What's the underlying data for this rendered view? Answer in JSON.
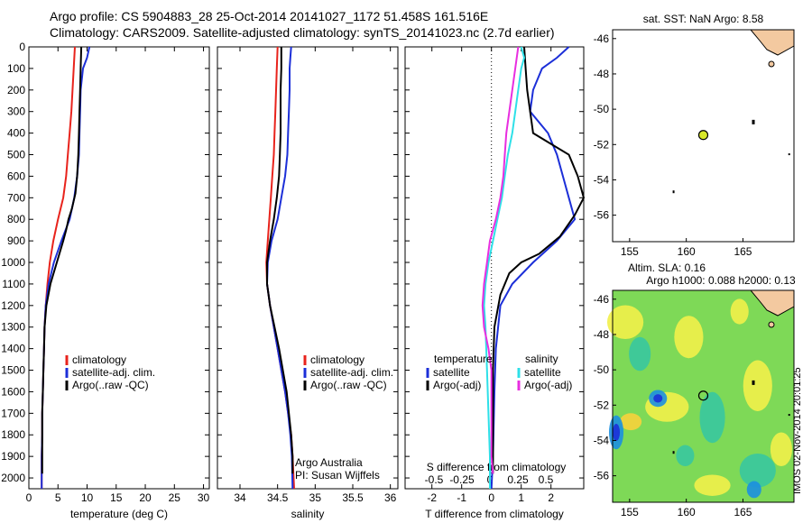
{
  "header": {
    "title_line1": "Argo profile: CS 5904883_28 25-Oct-2014 20141027_1172 51.458S 161.516E",
    "title_line2": "Climatology: CARS2009. Satellite-adjusted climatology: synTS_20141023.nc (2.7d earlier)"
  },
  "stamp": "IMOS 02-Nov-2014 20:01:25",
  "colors": {
    "climatology": "#e8231c",
    "satellite": "#1c2fd8",
    "argo": "#000000",
    "sat_diff": "#2ee0e8",
    "argo_diff": "#e82ee0",
    "point": "#d8e82a"
  },
  "chart_data": [
    {
      "type": "line",
      "id": "temperature",
      "xlabel": "temperature (deg C)",
      "ylabel": "",
      "xlim": [
        0,
        31
      ],
      "ylim": [
        2050,
        0
      ],
      "xticks": [
        0,
        5,
        10,
        15,
        20,
        25,
        30
      ],
      "yticks": [
        0,
        100,
        200,
        300,
        400,
        500,
        600,
        700,
        800,
        900,
        1000,
        1100,
        1200,
        1300,
        1400,
        1500,
        1600,
        1700,
        1800,
        1900,
        2000
      ],
      "legend": [
        "climatology",
        "satellite-adj. clim.",
        "Argo(..raw -QC)"
      ],
      "series": [
        {
          "name": "climatology",
          "color": "#e8231c",
          "points": [
            [
              7.9,
              0
            ],
            [
              7.7,
              100
            ],
            [
              7.5,
              200
            ],
            [
              7.3,
              300
            ],
            [
              7.0,
              400
            ],
            [
              6.7,
              500
            ],
            [
              6.4,
              600
            ],
            [
              5.9,
              700
            ],
            [
              5.0,
              800
            ],
            [
              4.2,
              900
            ],
            [
              3.6,
              1000
            ],
            [
              3.2,
              1100
            ],
            [
              2.9,
              1200
            ],
            [
              2.7,
              1300
            ],
            [
              2.6,
              1400
            ],
            [
              2.5,
              1500
            ],
            [
              2.4,
              1600
            ],
            [
              2.3,
              1700
            ],
            [
              2.3,
              1800
            ],
            [
              2.2,
              1900
            ],
            [
              2.2,
              2050
            ]
          ]
        },
        {
          "name": "satellite-adj. clim.",
          "color": "#1c2fd8",
          "points": [
            [
              10.4,
              0
            ],
            [
              10.0,
              50
            ],
            [
              9.3,
              100
            ],
            [
              8.9,
              200
            ],
            [
              8.8,
              300
            ],
            [
              8.7,
              400
            ],
            [
              8.6,
              500
            ],
            [
              8.3,
              600
            ],
            [
              7.8,
              700
            ],
            [
              7.0,
              800
            ],
            [
              5.6,
              900
            ],
            [
              4.3,
              1000
            ],
            [
              3.4,
              1100
            ],
            [
              2.9,
              1200
            ],
            [
              2.7,
              1300
            ],
            [
              2.6,
              1400
            ],
            [
              2.5,
              1500
            ],
            [
              2.4,
              1600
            ],
            [
              2.3,
              1700
            ],
            [
              2.3,
              1800
            ],
            [
              2.2,
              1900
            ],
            [
              2.2,
              2050
            ]
          ]
        },
        {
          "name": "Argo(..raw -QC)",
          "color": "#000000",
          "points": [
            [
              9.0,
              0
            ],
            [
              8.9,
              100
            ],
            [
              8.8,
              200
            ],
            [
              8.7,
              300
            ],
            [
              8.6,
              400
            ],
            [
              8.5,
              500
            ],
            [
              8.3,
              600
            ],
            [
              8.0,
              680
            ],
            [
              7.4,
              750
            ],
            [
              6.8,
              800
            ],
            [
              6.4,
              850
            ],
            [
              5.9,
              900
            ],
            [
              4.8,
              1000
            ],
            [
              3.7,
              1100
            ],
            [
              3.0,
              1200
            ],
            [
              2.7,
              1300
            ],
            [
              2.6,
              1400
            ],
            [
              2.5,
              1500
            ],
            [
              2.4,
              1600
            ],
            [
              2.3,
              1700
            ],
            [
              2.3,
              1800
            ],
            [
              2.3,
              1900
            ],
            [
              2.3,
              1980
            ]
          ]
        }
      ]
    },
    {
      "type": "line",
      "id": "salinity",
      "xlabel": "salinity",
      "ylabel": "",
      "xlim": [
        33.7,
        36.1
      ],
      "ylim": [
        2050,
        0
      ],
      "xticks": [
        34,
        34.5,
        35,
        35.5,
        36
      ],
      "legend": [
        "climatology",
        "satellite-adj. clim.",
        "Argo(..raw -QC)"
      ],
      "annotation": [
        "Argo Australia",
        "PI: Susan Wijffels"
      ],
      "series": [
        {
          "name": "climatology",
          "color": "#e8231c",
          "points": [
            [
              34.5,
              0
            ],
            [
              34.49,
              100
            ],
            [
              34.48,
              200
            ],
            [
              34.47,
              300
            ],
            [
              34.46,
              400
            ],
            [
              34.45,
              500
            ],
            [
              34.43,
              600
            ],
            [
              34.41,
              700
            ],
            [
              34.39,
              800
            ],
            [
              34.37,
              900
            ],
            [
              34.35,
              1000
            ],
            [
              34.36,
              1100
            ],
            [
              34.4,
              1200
            ],
            [
              34.45,
              1300
            ],
            [
              34.5,
              1400
            ],
            [
              34.55,
              1500
            ],
            [
              34.6,
              1600
            ],
            [
              34.64,
              1700
            ],
            [
              34.68,
              1800
            ],
            [
              34.7,
              1900
            ],
            [
              34.72,
              2050
            ]
          ]
        },
        {
          "name": "satellite-adj. clim.",
          "color": "#1c2fd8",
          "points": [
            [
              34.68,
              0
            ],
            [
              34.67,
              50
            ],
            [
              34.66,
              100
            ],
            [
              34.66,
              200
            ],
            [
              34.65,
              300
            ],
            [
              34.64,
              400
            ],
            [
              34.63,
              500
            ],
            [
              34.6,
              600
            ],
            [
              34.55,
              700
            ],
            [
              34.5,
              800
            ],
            [
              34.42,
              900
            ],
            [
              34.37,
              1000
            ],
            [
              34.36,
              1100
            ],
            [
              34.4,
              1200
            ],
            [
              34.45,
              1300
            ],
            [
              34.5,
              1400
            ],
            [
              34.55,
              1500
            ],
            [
              34.6,
              1600
            ],
            [
              34.64,
              1700
            ],
            [
              34.67,
              1800
            ],
            [
              34.69,
              1900
            ],
            [
              34.7,
              2050
            ]
          ]
        },
        {
          "name": "Argo(..raw -QC)",
          "color": "#000000",
          "points": [
            [
              34.55,
              0
            ],
            [
              34.55,
              100
            ],
            [
              34.54,
              200
            ],
            [
              34.54,
              300
            ],
            [
              34.54,
              400
            ],
            [
              34.53,
              500
            ],
            [
              34.52,
              600
            ],
            [
              34.49,
              700
            ],
            [
              34.45,
              800
            ],
            [
              34.4,
              900
            ],
            [
              34.36,
              1000
            ],
            [
              34.36,
              1100
            ],
            [
              34.4,
              1200
            ],
            [
              34.46,
              1300
            ],
            [
              34.52,
              1400
            ],
            [
              34.57,
              1500
            ],
            [
              34.62,
              1600
            ],
            [
              34.65,
              1700
            ],
            [
              34.68,
              1800
            ],
            [
              34.7,
              1900
            ],
            [
              34.7,
              1980
            ]
          ]
        }
      ]
    },
    {
      "type": "line",
      "id": "difference",
      "xlabel": "T difference from climatology",
      "xlabel_top": "S difference from climatology",
      "xlim": [
        -2.9,
        3.1
      ],
      "ylim": [
        2050,
        0
      ],
      "xticks": [
        -2,
        -1,
        0,
        1,
        2
      ],
      "xticks_top_labels": [
        "-0.5",
        "-0.25",
        "0",
        "0.25",
        "0.5"
      ],
      "legend_temperature": [
        "temperature",
        "satellite",
        "Argo(-adj)"
      ],
      "legend_salinity": [
        "salinity",
        "satellite",
        "Argo(-adj)"
      ],
      "series": [
        {
          "name": "temperature satellite",
          "color": "#1c2fd8",
          "points": [
            [
              2.6,
              0
            ],
            [
              2.2,
              50
            ],
            [
              1.7,
              100
            ],
            [
              1.4,
              200
            ],
            [
              1.3,
              300
            ],
            [
              1.9,
              400
            ],
            [
              2.2,
              500
            ],
            [
              2.4,
              600
            ],
            [
              2.6,
              700
            ],
            [
              2.8,
              800
            ],
            [
              2.2,
              900
            ],
            [
              1.4,
              1000
            ],
            [
              0.7,
              1100
            ],
            [
              0.3,
              1200
            ],
            [
              0.15,
              1400
            ],
            [
              0.1,
              1600
            ],
            [
              0.05,
              1900
            ],
            [
              0.0,
              2050
            ]
          ]
        },
        {
          "name": "temperature Argo(-adj)",
          "color": "#000000",
          "points": [
            [
              1.1,
              0
            ],
            [
              1.15,
              100
            ],
            [
              1.2,
              200
            ],
            [
              1.3,
              300
            ],
            [
              1.4,
              400
            ],
            [
              2.0,
              450
            ],
            [
              2.6,
              500
            ],
            [
              2.9,
              600
            ],
            [
              3.1,
              700
            ],
            [
              2.8,
              780
            ],
            [
              2.3,
              880
            ],
            [
              1.6,
              960
            ],
            [
              1.0,
              1000
            ],
            [
              0.6,
              1050
            ],
            [
              0.3,
              1150
            ],
            [
              0.1,
              1300
            ],
            [
              0.05,
              1500
            ],
            [
              0.05,
              1700
            ],
            [
              0.05,
              1900
            ],
            [
              0.05,
              1980
            ]
          ]
        },
        {
          "name": "salinity satellite",
          "color": "#2ee0e8",
          "points": [
            [
              1.0,
              0
            ],
            [
              1.1,
              50
            ],
            [
              1.0,
              100
            ],
            [
              0.9,
              200
            ],
            [
              0.8,
              300
            ],
            [
              0.7,
              400
            ],
            [
              0.55,
              500
            ],
            [
              0.45,
              600
            ],
            [
              0.35,
              700
            ],
            [
              0.2,
              800
            ],
            [
              0.05,
              900
            ],
            [
              -0.1,
              1000
            ],
            [
              -0.2,
              1100
            ],
            [
              -0.25,
              1200
            ],
            [
              -0.2,
              1300
            ],
            [
              -0.15,
              1500
            ],
            [
              -0.1,
              1700
            ],
            [
              -0.05,
              1900
            ],
            [
              -0.05,
              2050
            ]
          ]
        },
        {
          "name": "salinity Argo(-adj)",
          "color": "#e82ee0",
          "points": [
            [
              0.9,
              0
            ],
            [
              0.8,
              100
            ],
            [
              0.7,
              200
            ],
            [
              0.6,
              300
            ],
            [
              0.5,
              400
            ],
            [
              0.45,
              500
            ],
            [
              0.4,
              600
            ],
            [
              0.3,
              700
            ],
            [
              0.15,
              800
            ],
            [
              -0.05,
              900
            ],
            [
              -0.15,
              1000
            ],
            [
              -0.25,
              1100
            ],
            [
              -0.3,
              1200
            ],
            [
              -0.25,
              1300
            ],
            [
              -0.1,
              1400
            ],
            [
              0.0,
              1500
            ],
            [
              0.0,
              1700
            ],
            [
              0.0,
              1900
            ],
            [
              0.05,
              1980
            ]
          ]
        }
      ]
    },
    {
      "type": "scatter",
      "id": "map_sst",
      "title": "sat. SST: NaN Argo: 8.58",
      "xlim": [
        153.5,
        169.5
      ],
      "ylim": [
        -57.5,
        -45.5
      ],
      "xticks": [
        155,
        160,
        165
      ],
      "yticks": [
        -46,
        -48,
        -50,
        -52,
        -54,
        -56
      ],
      "points": [
        [
          161.5,
          -51.46
        ]
      ]
    },
    {
      "type": "heatmap",
      "id": "map_sla",
      "title_line1": "Altim. SLA: 0.16",
      "title_line2": "Argo h1000: 0.088 h2000: 0.13",
      "xlim": [
        153.5,
        169.5
      ],
      "ylim": [
        -57.5,
        -45.5
      ],
      "xticks": [
        155,
        160,
        165
      ],
      "yticks": [
        -46,
        -48,
        -50,
        -52,
        -54,
        -56
      ],
      "points": [
        [
          161.5,
          -51.46
        ]
      ]
    }
  ]
}
